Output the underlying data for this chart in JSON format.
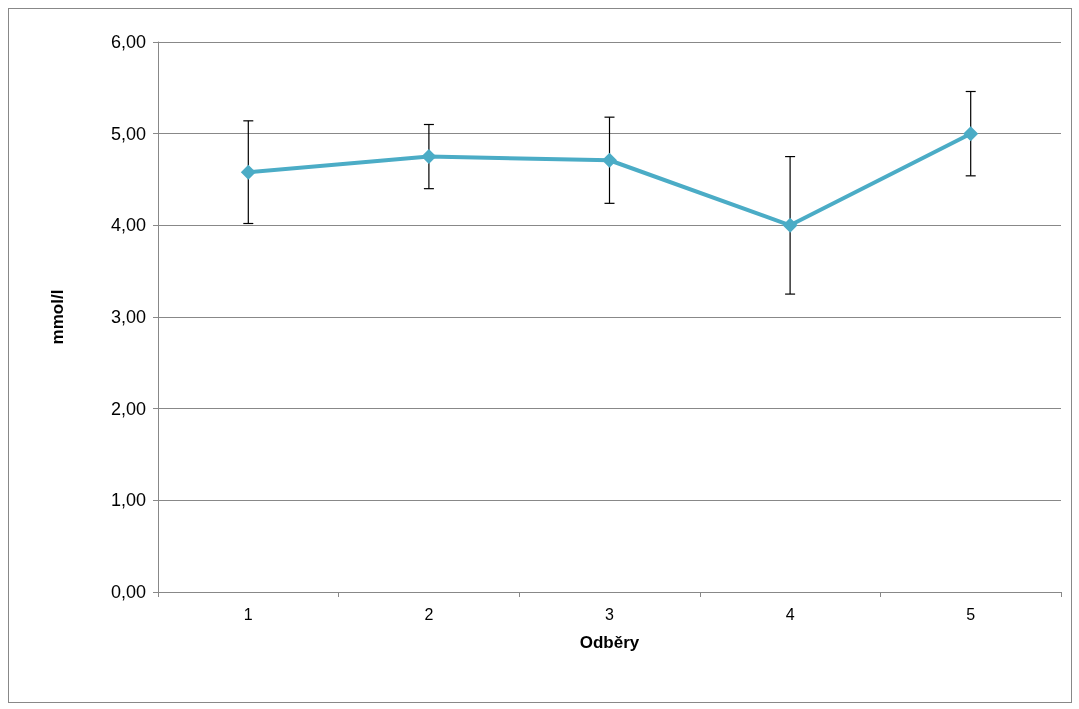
{
  "chart_data": {
    "type": "line",
    "xlabel": "Odběry",
    "ylabel": "mmol/l",
    "categories": [
      "1",
      "2",
      "3",
      "4",
      "5"
    ],
    "series": [
      {
        "color": "#4bacc6",
        "values": [
          4.58,
          4.75,
          4.71,
          4.0,
          5.0
        ],
        "errors": [
          0.56,
          0.35,
          0.47,
          0.75,
          0.46
        ]
      }
    ],
    "ylim": [
      0,
      6
    ],
    "yticks": [
      {
        "value": 0,
        "label": "0,00"
      },
      {
        "value": 1,
        "label": "1,00"
      },
      {
        "value": 2,
        "label": "2,00"
      },
      {
        "value": 3,
        "label": "3,00"
      },
      {
        "value": 4,
        "label": "4,00"
      },
      {
        "value": 5,
        "label": "5,00"
      },
      {
        "value": 6,
        "label": "6,00"
      }
    ],
    "grid": "y",
    "marker": "diamond",
    "line_style": "solid"
  }
}
